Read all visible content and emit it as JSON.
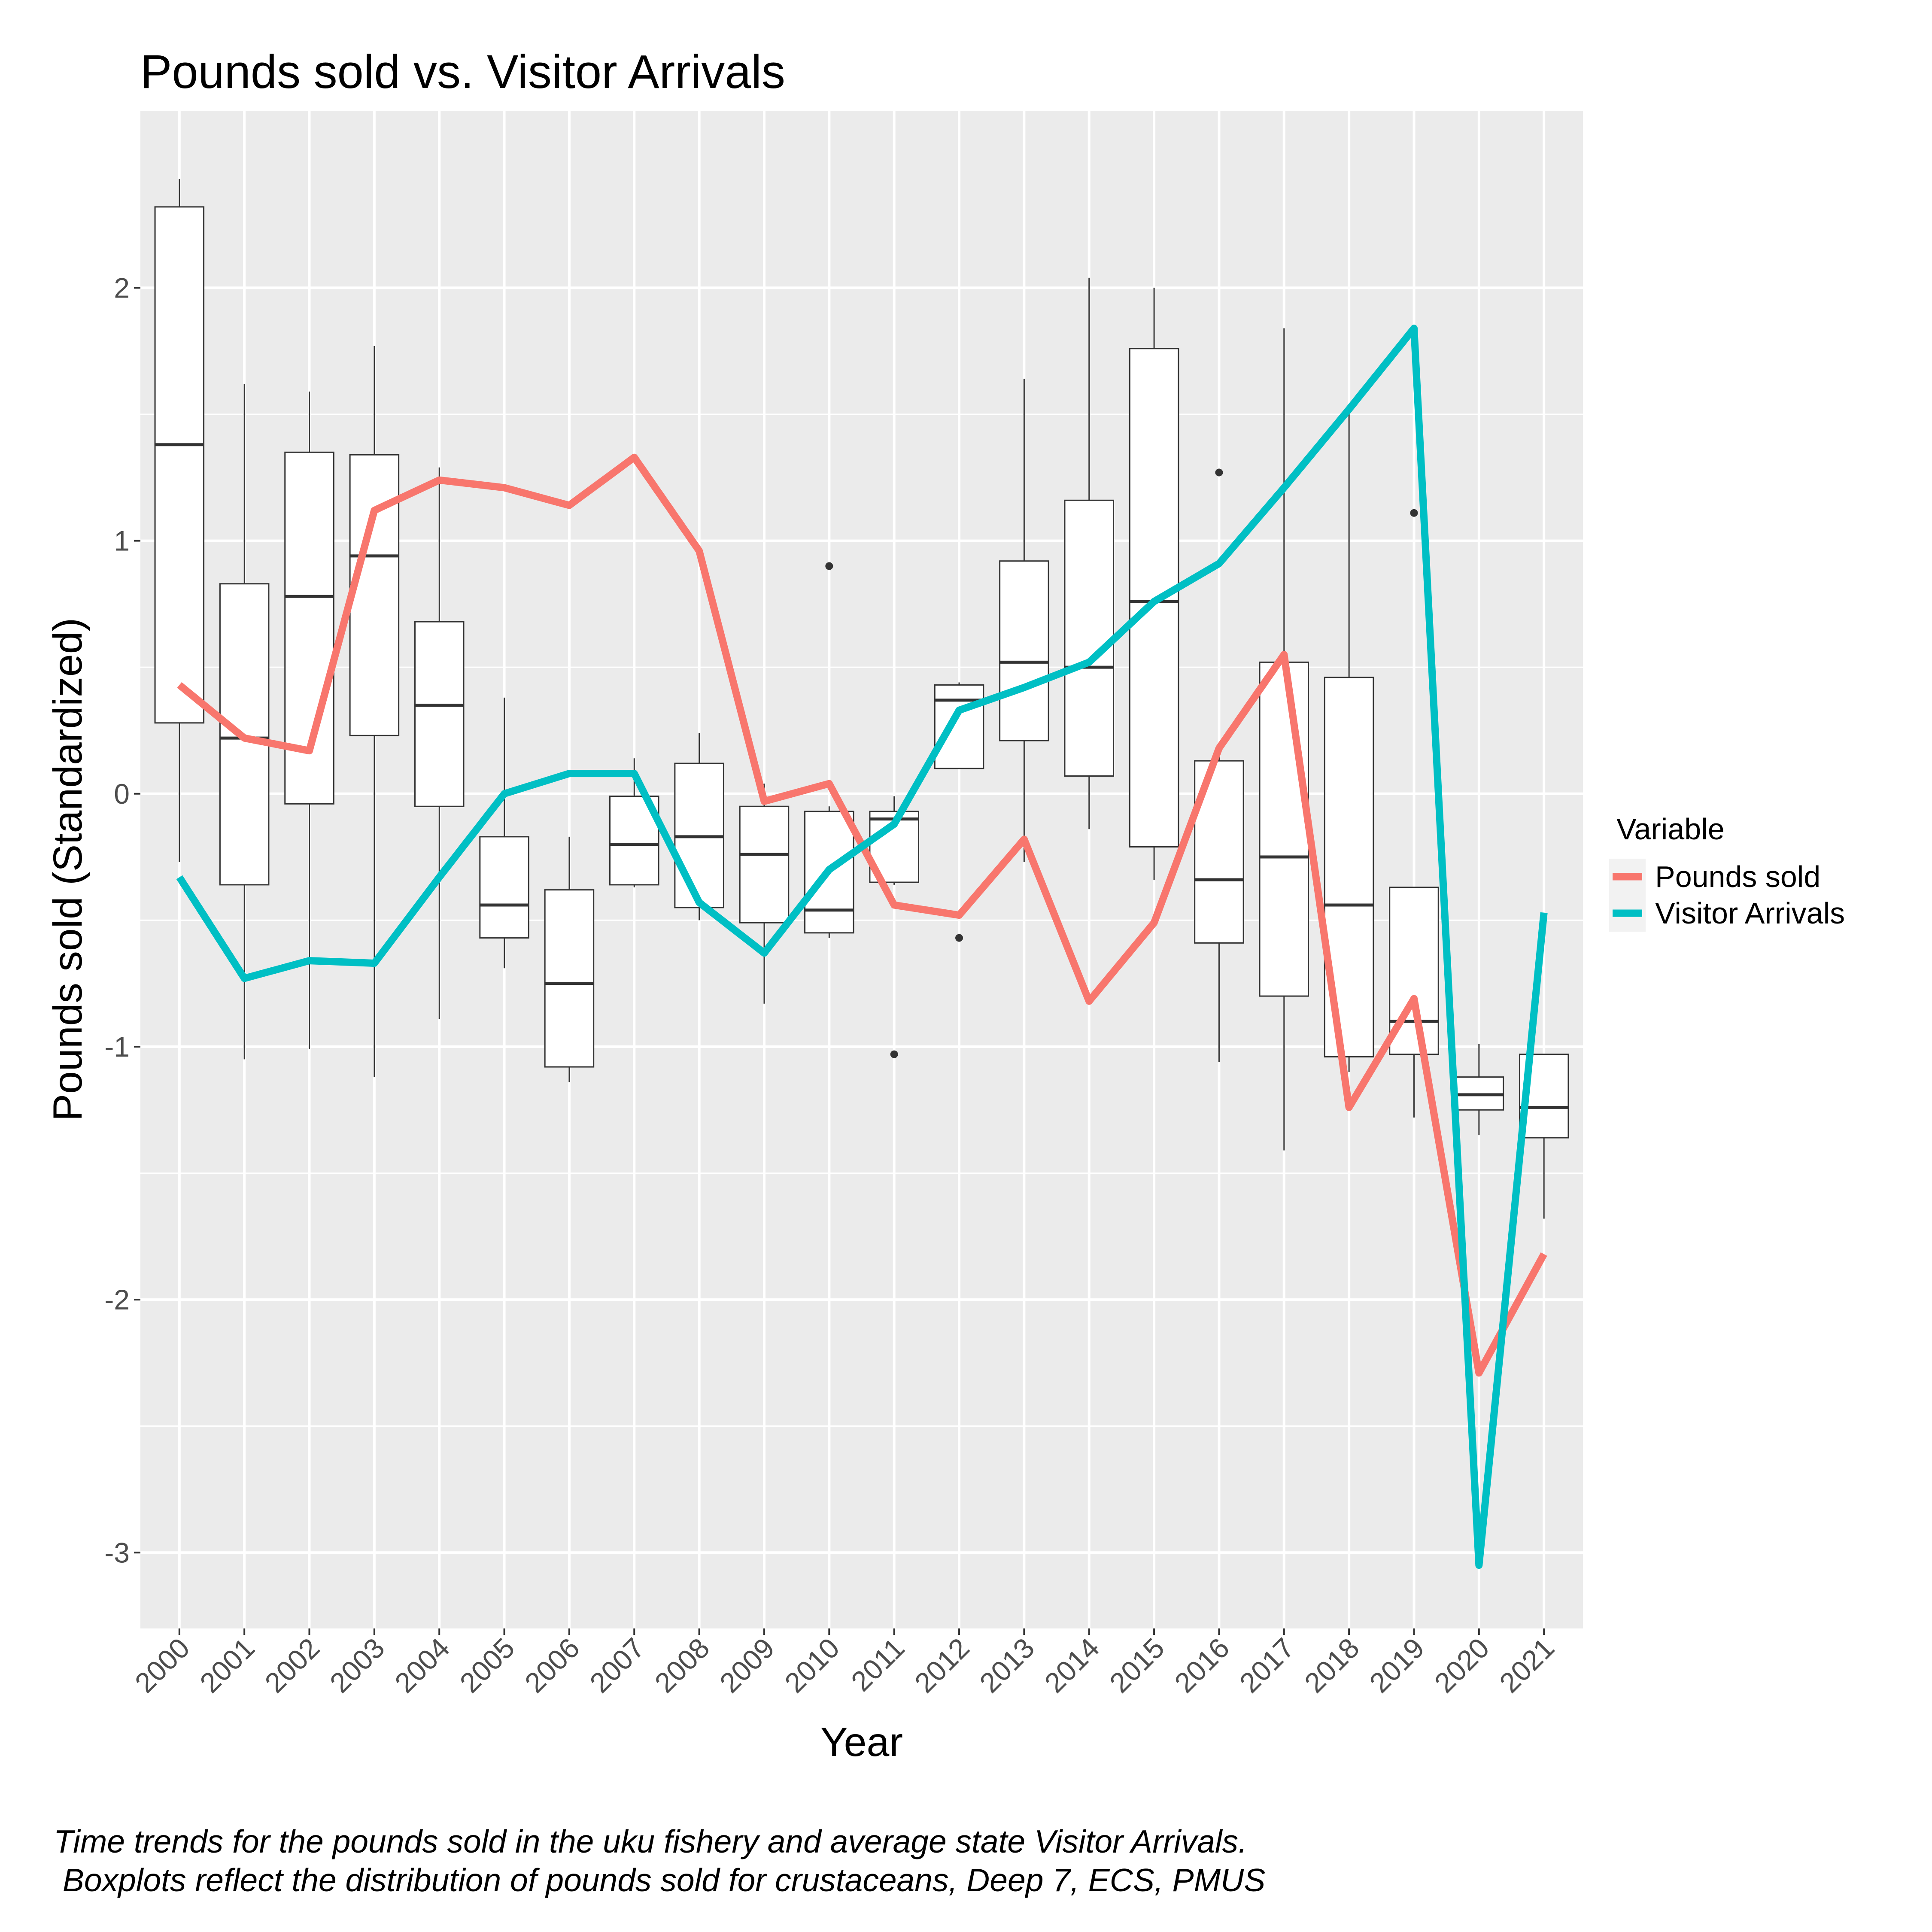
{
  "chart_data": {
    "type": "line",
    "title": "Pounds sold vs. Visitor Arrivals",
    "xlabel": "Year",
    "ylabel": "Pounds sold (Standardized)",
    "categories": [
      "2000",
      "2001",
      "2002",
      "2003",
      "2004",
      "2005",
      "2006",
      "2007",
      "2008",
      "2009",
      "2010",
      "2011",
      "2012",
      "2013",
      "2014",
      "2015",
      "2016",
      "2017",
      "2018",
      "2019",
      "2020",
      "2021"
    ],
    "ylim": [
      -3.3,
      2.7
    ],
    "yticks": [
      -3,
      -2,
      -1,
      0,
      1,
      2
    ],
    "ytick_labels": [
      "-3",
      "-2",
      "-1",
      "0",
      "1",
      "2"
    ],
    "grid": true,
    "legend": {
      "title": "Variable",
      "placement": "right"
    },
    "series": [
      {
        "name": "Pounds sold",
        "color": "#F8766D",
        "values": [
          0.43,
          0.22,
          0.17,
          1.12,
          1.24,
          1.21,
          1.14,
          1.33,
          0.96,
          -0.03,
          0.04,
          -0.44,
          -0.48,
          -0.18,
          -0.82,
          -0.51,
          0.18,
          0.55,
          -1.24,
          -0.81,
          -2.29,
          -1.82
        ]
      },
      {
        "name": "Visitor Arrivals",
        "color": "#00BFC4",
        "values": [
          -0.33,
          -0.73,
          -0.66,
          -0.67,
          -0.33,
          0.0,
          0.08,
          0.08,
          -0.43,
          -0.63,
          -0.3,
          -0.12,
          0.33,
          0.42,
          0.52,
          0.76,
          0.91,
          1.21,
          1.52,
          1.84,
          -3.05,
          -0.47
        ]
      }
    ],
    "boxplots": [
      {
        "year": "2000",
        "whisker_low": -0.27,
        "q1": 0.28,
        "median": 1.38,
        "q3": 2.32,
        "whisker_high": 2.43,
        "outliers": []
      },
      {
        "year": "2001",
        "whisker_low": -1.05,
        "q1": -0.36,
        "median": 0.22,
        "q3": 0.83,
        "whisker_high": 1.62,
        "outliers": []
      },
      {
        "year": "2002",
        "whisker_low": -1.01,
        "q1": -0.04,
        "median": 0.78,
        "q3": 1.35,
        "whisker_high": 1.59,
        "outliers": []
      },
      {
        "year": "2003",
        "whisker_low": -1.12,
        "q1": 0.23,
        "median": 0.94,
        "q3": 1.34,
        "whisker_high": 1.77,
        "outliers": []
      },
      {
        "year": "2004",
        "whisker_low": -0.89,
        "q1": -0.05,
        "median": 0.35,
        "q3": 0.68,
        "whisker_high": 1.29,
        "outliers": []
      },
      {
        "year": "2005",
        "whisker_low": -0.69,
        "q1": -0.57,
        "median": -0.44,
        "q3": -0.17,
        "whisker_high": 0.38,
        "outliers": []
      },
      {
        "year": "2006",
        "whisker_low": -1.14,
        "q1": -1.08,
        "median": -0.75,
        "q3": -0.38,
        "whisker_high": -0.17,
        "outliers": []
      },
      {
        "year": "2007",
        "whisker_low": -0.37,
        "q1": -0.36,
        "median": -0.2,
        "q3": -0.01,
        "whisker_high": 0.14,
        "outliers": []
      },
      {
        "year": "2008",
        "whisker_low": -0.5,
        "q1": -0.45,
        "median": -0.17,
        "q3": 0.12,
        "whisker_high": 0.24,
        "outliers": []
      },
      {
        "year": "2009",
        "whisker_low": -0.83,
        "q1": -0.51,
        "median": -0.24,
        "q3": -0.05,
        "whisker_high": 0.04,
        "outliers": []
      },
      {
        "year": "2010",
        "whisker_low": -0.57,
        "q1": -0.55,
        "median": -0.46,
        "q3": -0.07,
        "whisker_high": -0.05,
        "outliers": [
          0.9
        ]
      },
      {
        "year": "2011",
        "whisker_low": -0.36,
        "q1": -0.35,
        "median": -0.1,
        "q3": -0.07,
        "whisker_high": -0.01,
        "outliers": [
          -1.03
        ]
      },
      {
        "year": "2012",
        "whisker_low": 0.1,
        "q1": 0.1,
        "median": 0.37,
        "q3": 0.43,
        "whisker_high": 0.44,
        "outliers": [
          -0.57
        ]
      },
      {
        "year": "2013",
        "whisker_low": -0.27,
        "q1": 0.21,
        "median": 0.52,
        "q3": 0.92,
        "whisker_high": 1.64,
        "outliers": []
      },
      {
        "year": "2014",
        "whisker_low": -0.14,
        "q1": 0.07,
        "median": 0.5,
        "q3": 1.16,
        "whisker_high": 2.04,
        "outliers": []
      },
      {
        "year": "2015",
        "whisker_low": -0.34,
        "q1": -0.21,
        "median": 0.76,
        "q3": 1.76,
        "whisker_high": 2.0,
        "outliers": []
      },
      {
        "year": "2016",
        "whisker_low": -1.06,
        "q1": -0.59,
        "median": -0.34,
        "q3": 0.13,
        "whisker_high": 0.15,
        "outliers": [
          1.27
        ]
      },
      {
        "year": "2017",
        "whisker_low": -1.41,
        "q1": -0.8,
        "median": -0.25,
        "q3": 0.52,
        "whisker_high": 1.84,
        "outliers": []
      },
      {
        "year": "2018",
        "whisker_low": -1.1,
        "q1": -1.04,
        "median": -0.44,
        "q3": 0.46,
        "whisker_high": 1.52,
        "outliers": []
      },
      {
        "year": "2019",
        "whisker_low": -1.28,
        "q1": -1.03,
        "median": -0.9,
        "q3": -0.37,
        "whisker_high": -0.37,
        "outliers": [
          1.11
        ]
      },
      {
        "year": "2020",
        "whisker_low": -1.35,
        "q1": -1.25,
        "median": -1.19,
        "q3": -1.12,
        "whisker_high": -0.99,
        "outliers": []
      },
      {
        "year": "2021",
        "whisker_low": -1.68,
        "q1": -1.36,
        "median": -1.24,
        "q3": -1.03,
        "whisker_high": -1.03,
        "outliers": []
      }
    ]
  },
  "caption": {
    "line1": "Time trends for the pounds sold in the uku fishery and average state Visitor Arrivals.",
    "line2": " Boxplots reflect the distribution of pounds sold for crustaceans, Deep 7, ECS, PMUS"
  }
}
